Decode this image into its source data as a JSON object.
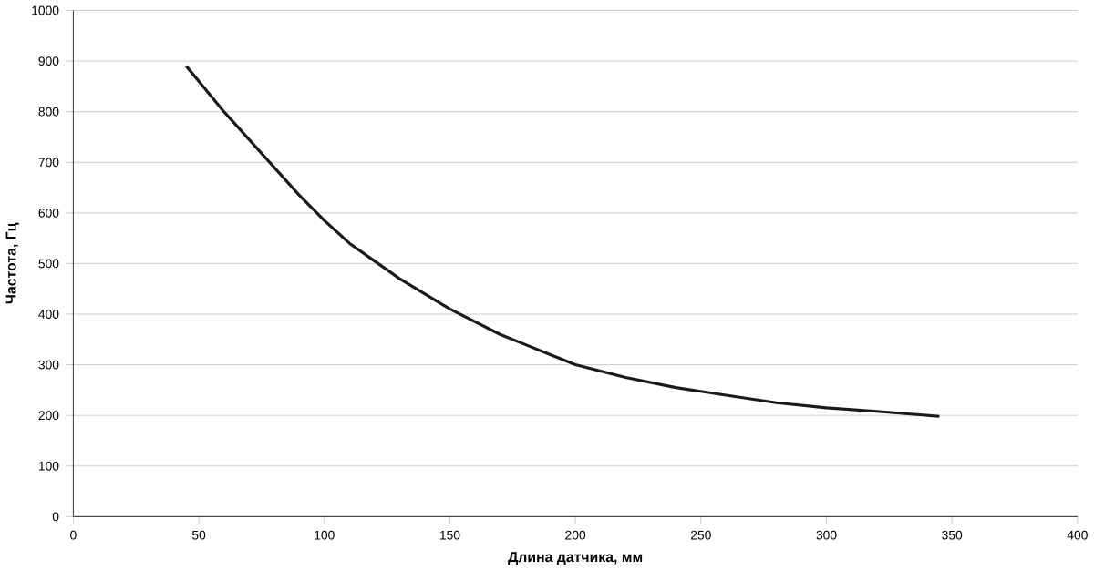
{
  "chart_data": {
    "type": "line",
    "xlabel": "Длина датчика, мм",
    "ylabel": "Частота, Гц",
    "x": [
      45,
      50,
      60,
      70,
      80,
      90,
      100,
      110,
      120,
      130,
      140,
      150,
      160,
      170,
      180,
      190,
      200,
      220,
      240,
      260,
      280,
      300,
      320,
      345
    ],
    "values": [
      890,
      860,
      800,
      745,
      690,
      635,
      585,
      540,
      505,
      470,
      440,
      410,
      385,
      360,
      340,
      320,
      300,
      275,
      255,
      240,
      225,
      215,
      208,
      198
    ],
    "color": "#1a1a1a",
    "xlim": [
      0,
      400
    ],
    "ylim": [
      0,
      1000
    ],
    "xticks": [
      0,
      50,
      100,
      150,
      200,
      250,
      300,
      350,
      400
    ],
    "yticks": [
      0,
      100,
      200,
      300,
      400,
      500,
      600,
      700,
      800,
      900,
      1000
    ],
    "grid": "y",
    "marker": "none",
    "line_style": "solid"
  }
}
